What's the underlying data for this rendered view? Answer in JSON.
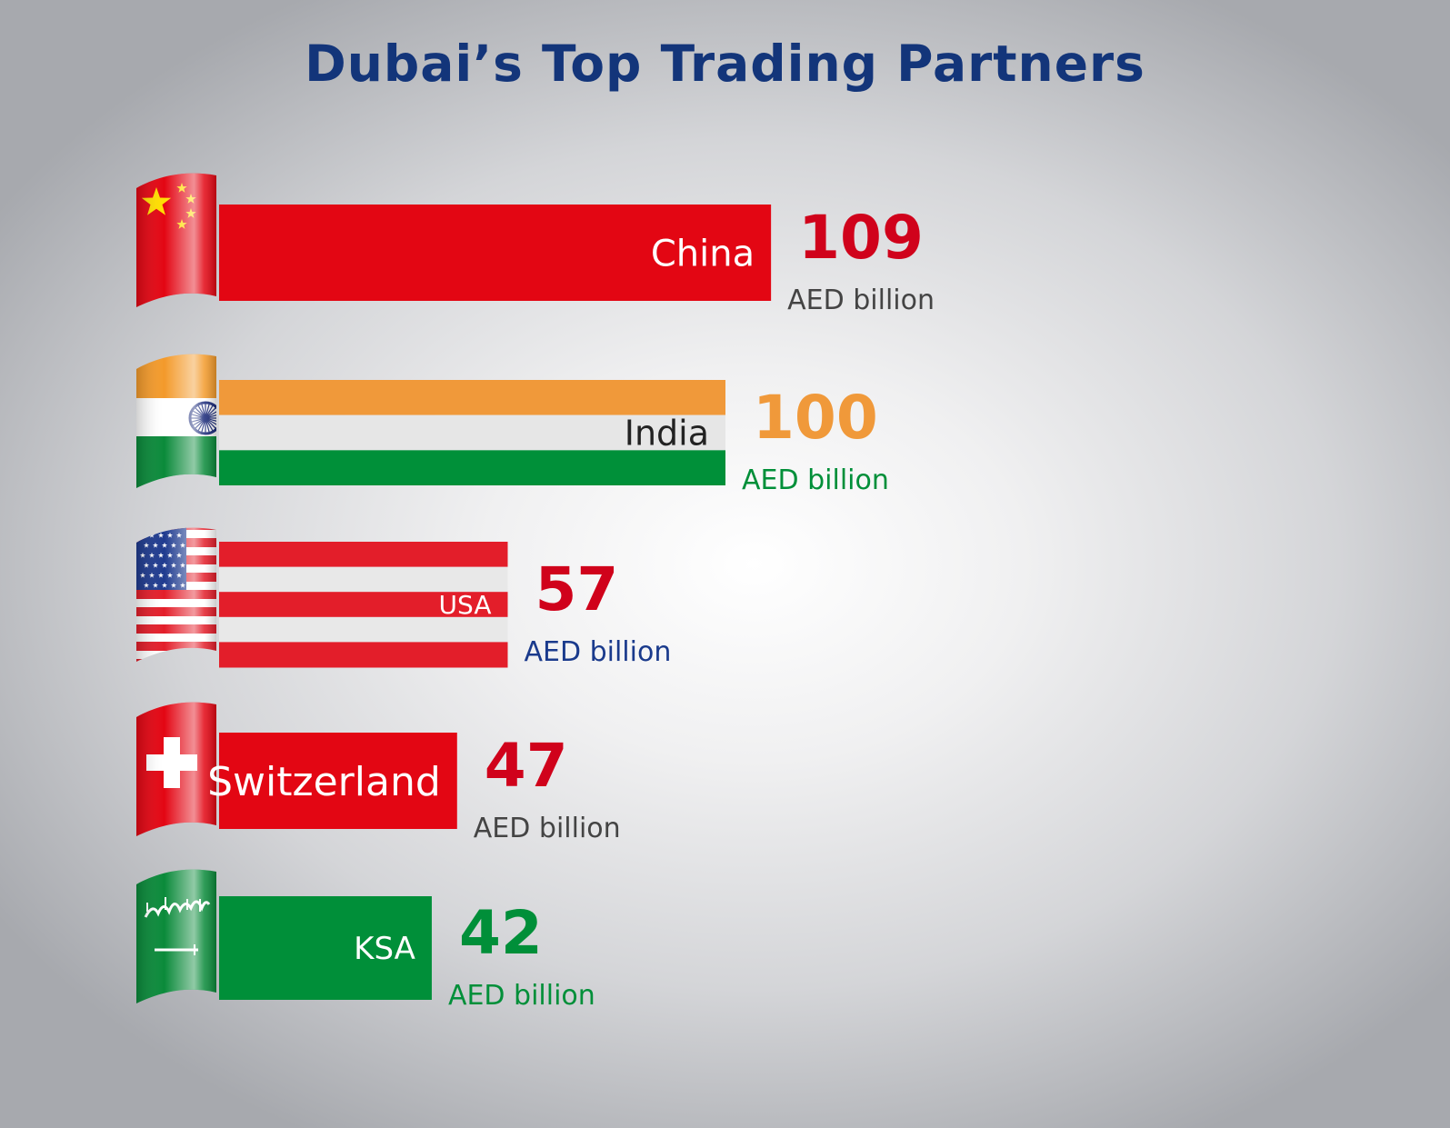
{
  "chart_data": {
    "type": "bar",
    "orientation": "horizontal",
    "title": "Dubai’s Top Trading Partners",
    "unit": "AED billion",
    "categories": [
      "China",
      "India",
      "USA",
      "Switzerland",
      "KSA"
    ],
    "values": [
      109,
      100,
      57,
      47,
      42
    ],
    "colors": {
      "China": "#e30613",
      "India": [
        "#f0993a",
        "#e6e6e6",
        "#009039"
      ],
      "USA": [
        "#e31e2a",
        "#e8e8e8"
      ],
      "Switzerland": "#e30613",
      "KSA": "#008f39"
    },
    "value_colors": [
      "#d0021b",
      "#f0993a",
      "#d0021b",
      "#d0021b",
      "#008f39"
    ],
    "unit_colors": [
      "#444444",
      "#008f39",
      "#1a3a8c",
      "#444444",
      "#008f39"
    ],
    "flags": [
      "china-flag-icon",
      "india-flag-icon",
      "usa-flag-icon",
      "switzerland-flag-icon",
      "ksa-flag-icon"
    ]
  }
}
